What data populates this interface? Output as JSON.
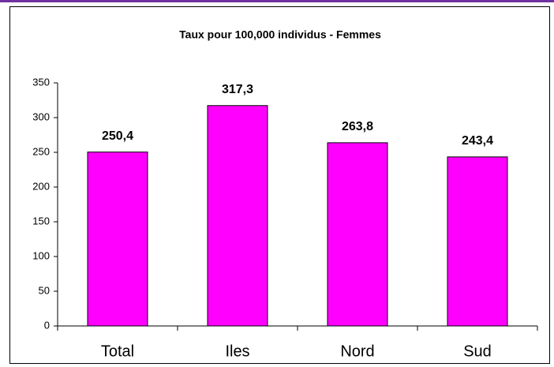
{
  "chart_data": {
    "type": "bar",
    "title": "Taux pour 100,000 individus - Femmes",
    "categories": [
      "Total",
      "Iles",
      "Nord",
      "Sud"
    ],
    "values": [
      250.4,
      317.3,
      263.8,
      243.4
    ],
    "value_labels": [
      "250,4",
      "317,3",
      "263,8",
      "243,4"
    ],
    "color": "#ff00ff",
    "ylim": [
      0,
      350
    ],
    "yticks": [
      0,
      50,
      100,
      150,
      200,
      250,
      300,
      350
    ],
    "grid": false
  }
}
